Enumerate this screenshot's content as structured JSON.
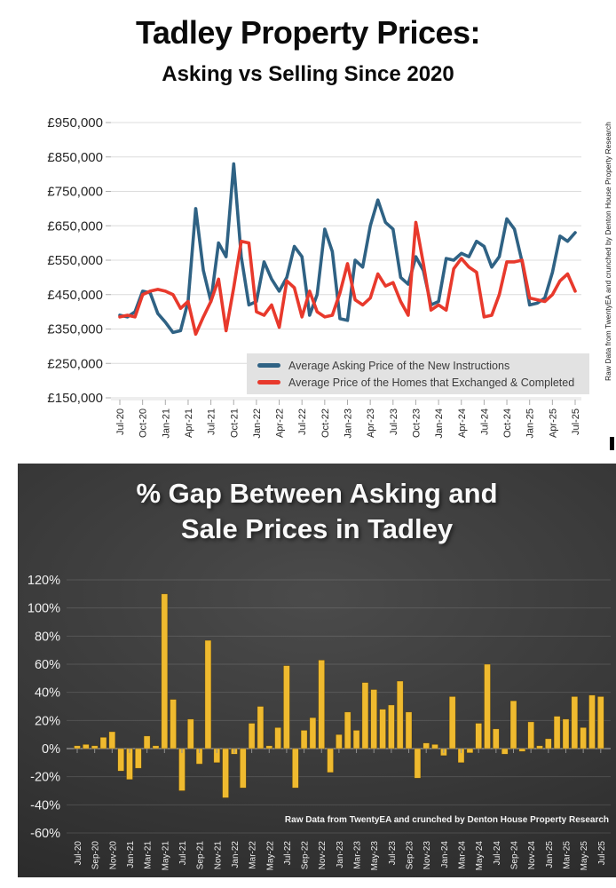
{
  "page": {
    "background": "#ffffff"
  },
  "top_chart": {
    "title": "Tadley Property Prices:",
    "subtitle": "Asking vs Selling Since 2020",
    "side_note": "Raw Data from TwentyEA and crunched by Denton House Property Research"
  },
  "bottom_chart": {
    "title_line1": "% Gap Between Asking and",
    "title_line2": "Sale Prices in Tadley",
    "caption": "Raw Data from TwentyEA and crunched by Denton House Property Research"
  },
  "months": [
    "Jul-20",
    "Aug-20",
    "Sep-20",
    "Oct-20",
    "Nov-20",
    "Dec-20",
    "Jan-21",
    "Feb-21",
    "Mar-21",
    "Apr-21",
    "May-21",
    "Jun-21",
    "Jul-21",
    "Aug-21",
    "Sep-21",
    "Oct-21",
    "Nov-21",
    "Dec-21",
    "Jan-22",
    "Feb-22",
    "Mar-22",
    "Apr-22",
    "May-22",
    "Jun-22",
    "Jul-22",
    "Aug-22",
    "Sep-22",
    "Oct-22",
    "Nov-22",
    "Dec-22",
    "Jan-23",
    "Feb-23",
    "Mar-23",
    "Apr-23",
    "May-23",
    "Jun-23",
    "Jul-23",
    "Aug-23",
    "Sep-23",
    "Oct-23",
    "Nov-23",
    "Dec-23",
    "Jan-24",
    "Feb-24",
    "Mar-24",
    "Apr-24",
    "May-24",
    "Jun-24",
    "Jul-24",
    "Aug-24",
    "Sep-24",
    "Oct-24",
    "Nov-24",
    "Dec-24",
    "Jan-25",
    "Feb-25",
    "Mar-25",
    "Apr-25",
    "May-25",
    "Jun-25",
    "Jul-25"
  ],
  "chart_data": [
    {
      "type": "line",
      "title": "Tadley Property Prices: Asking vs Selling Since 2020",
      "ylim": [
        150000,
        950000
      ],
      "y_tick_step": 100000,
      "y_tick_labels": [
        "£950,000",
        "£850,000",
        "£750,000",
        "£650,000",
        "£550,000",
        "£450,000",
        "£350,000",
        "£250,000",
        "£150,000"
      ],
      "x_tick_labels": [
        "Jul-20",
        "Oct-20",
        "Jan-21",
        "Apr-21",
        "Jul-21",
        "Oct-21",
        "Jan-22",
        "Apr-22",
        "Jul-22",
        "Oct-22",
        "Jan-23",
        "Apr-23",
        "Jul-23",
        "Oct-23",
        "Jan-24",
        "Apr-24",
        "Jul-24",
        "Oct-24",
        "Jan-25",
        "Apr-25",
        "Jul-25"
      ],
      "grid": "horizontal",
      "legend_position": "inside-bottom-right",
      "series": [
        {
          "name": "Average Asking Price of the New Instructions",
          "color": "#2F6284",
          "values": [
            390000,
            385000,
            400000,
            460000,
            455000,
            395000,
            370000,
            340000,
            345000,
            430000,
            700000,
            520000,
            430000,
            600000,
            560000,
            830000,
            560000,
            420000,
            430000,
            545000,
            495000,
            460000,
            500000,
            590000,
            560000,
            390000,
            450000,
            640000,
            575000,
            380000,
            375000,
            550000,
            530000,
            650000,
            725000,
            660000,
            640000,
            500000,
            480000,
            560000,
            520000,
            420000,
            430000,
            555000,
            550000,
            570000,
            560000,
            605000,
            590000,
            530000,
            560000,
            670000,
            640000,
            545000,
            420000,
            425000,
            440000,
            515000,
            620000,
            605000,
            630000
          ]
        },
        {
          "name": "Average Price of the Homes that Exchanged & Completed",
          "color": "#E8392C",
          "values": [
            385000,
            390000,
            385000,
            450000,
            460000,
            465000,
            460000,
            450000,
            410000,
            430000,
            335000,
            385000,
            430000,
            495000,
            345000,
            470000,
            605000,
            600000,
            400000,
            390000,
            420000,
            355000,
            490000,
            470000,
            385000,
            460000,
            400000,
            385000,
            390000,
            455000,
            540000,
            435000,
            420000,
            440000,
            510000,
            475000,
            485000,
            430000,
            390000,
            660000,
            540000,
            405000,
            420000,
            405000,
            525000,
            555000,
            530000,
            515000,
            385000,
            390000,
            450000,
            545000,
            545000,
            550000,
            440000,
            435000,
            430000,
            450000,
            490000,
            510000,
            460000
          ]
        }
      ]
    },
    {
      "type": "bar",
      "title": "% Gap Between Asking and Sale Prices in Tadley",
      "ylim": [
        -60,
        120
      ],
      "y_tick_step": 20,
      "y_tick_labels": [
        "120%",
        "100%",
        "80%",
        "60%",
        "40%",
        "20%",
        "0%",
        "-20%",
        "-40%",
        "-60%"
      ],
      "x_tick_labels": [
        "Jul-20",
        "Sep-20",
        "Nov-20",
        "Jan-21",
        "Mar-21",
        "May-21",
        "Jul-21",
        "Sep-21",
        "Nov-21",
        "Jan-22",
        "Mar-22",
        "May-22",
        "Jul-22",
        "Sep-22",
        "Nov-22",
        "Jan-23",
        "Mar-23",
        "May-23",
        "Jul-23",
        "Sep-23",
        "Nov-23",
        "Jan-24",
        "Mar-24",
        "May-24",
        "Jul-24",
        "Sep-24",
        "Nov-24",
        "Jan-25",
        "Mar-25",
        "May-25",
        "Jul-25"
      ],
      "grid": "horizontal",
      "bar_color": "#EFBA2F",
      "background": "dark",
      "values_pct": [
        2,
        3,
        2,
        8,
        12,
        -16,
        -22,
        -14,
        9,
        2,
        110,
        35,
        -30,
        21,
        -11,
        77,
        -10,
        -35,
        -4,
        -28,
        18,
        30,
        2,
        15,
        59,
        -28,
        13,
        22,
        63,
        -17,
        10,
        26,
        13,
        47,
        42,
        28,
        31,
        48,
        26,
        -21,
        4,
        3,
        -5,
        37,
        -10,
        -3,
        18,
        60,
        14,
        -4,
        34,
        -2,
        19,
        2,
        7,
        23,
        21,
        37,
        15,
        38,
        37
      ]
    }
  ]
}
